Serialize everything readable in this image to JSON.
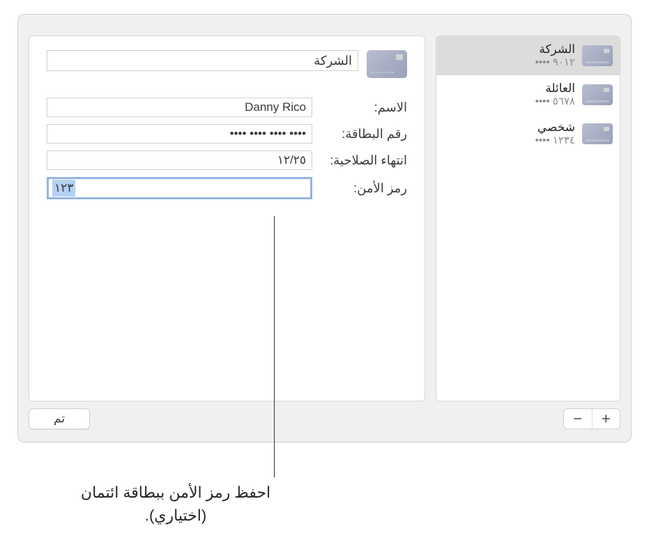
{
  "sidebar": {
    "items": [
      {
        "title": "الشركة",
        "subtitle": "٩٠١٢ ••••",
        "selected": true
      },
      {
        "title": "العائلة",
        "subtitle": "٥٦٧٨ ••••",
        "selected": false
      },
      {
        "title": "شخصي",
        "subtitle": "١٢٣٤ ••••",
        "selected": false
      }
    ]
  },
  "detail": {
    "card_title": "الشركة",
    "fields": {
      "name_label": "الاسم:",
      "name_value": "Danny Rico",
      "number_label": "رقم البطاقة:",
      "number_value": "•••• •••• •••• ••••",
      "expiry_label": "انتهاء الصلاحية:",
      "expiry_value": "١٢/٢٥",
      "security_label": "رمز الأمن:",
      "security_value": "١٢٣"
    }
  },
  "buttons": {
    "done": "تم",
    "add": "+",
    "remove": "−"
  },
  "callout": {
    "text": "احفظ رمز الأمن ببطاقة ائتمان (اختياري)."
  },
  "colors": {
    "window_bg": "#f0f0f0",
    "panel_bg": "#ffffff",
    "border": "#d0d0d0",
    "selected_bg": "#dcdcdc",
    "focus_border": "#93b5e3",
    "selection_bg": "#b3d1f4",
    "text_primary": "#3a3a3a",
    "text_secondary": "#8a8a8a",
    "card_gradient_start": "#b8bdd0",
    "card_gradient_end": "#9aa0b8"
  }
}
